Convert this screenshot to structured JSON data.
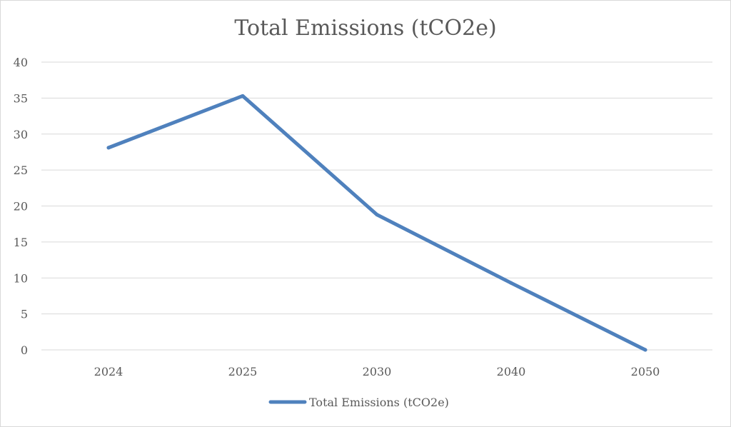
{
  "chart_data": {
    "type": "line",
    "title": "Total Emissions (tCO2e)",
    "xlabel": "",
    "ylabel": "",
    "categories": [
      "2024",
      "2025",
      "2030",
      "2040",
      "2050"
    ],
    "series": [
      {
        "name": "Total Emissions (tCO2e)",
        "values": [
          28.1,
          35.3,
          18.8,
          9.3,
          0
        ],
        "color": "#4f81bd"
      }
    ],
    "ylim": [
      0,
      40
    ],
    "yticks": [
      "0",
      "5",
      "10",
      "15",
      "20",
      "25",
      "30",
      "35",
      "40"
    ],
    "grid": true,
    "legend_position": "bottom"
  }
}
